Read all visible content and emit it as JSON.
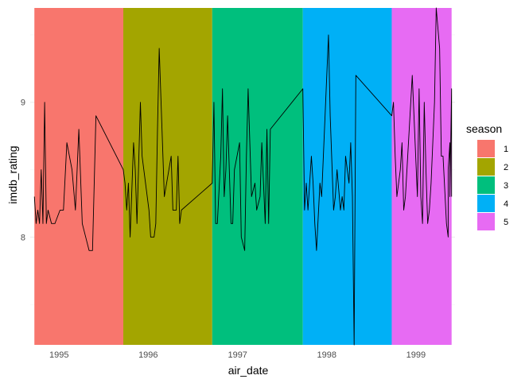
{
  "chart_data": {
    "type": "line",
    "xlabel": "air_date",
    "ylabel": "imdb_rating",
    "x_ticks": [
      "1995",
      "1996",
      "1997",
      "1998",
      "1999"
    ],
    "y_ticks": [
      8,
      9
    ],
    "xlim": [
      "1994-09-05",
      "1999-06-10"
    ],
    "ylim": [
      7.2,
      9.7
    ],
    "grid": true,
    "legend": {
      "title": "season",
      "placement": "right",
      "entries": [
        {
          "label": "1",
          "color": "#F8766D"
        },
        {
          "label": "2",
          "color": "#A3A500"
        },
        {
          "label": "3",
          "color": "#00BF7D"
        },
        {
          "label": "4",
          "color": "#00B0F6"
        },
        {
          "label": "5",
          "color": "#E76BF3"
        }
      ]
    },
    "season_bands": [
      {
        "season": "1",
        "start": "1994-09-22",
        "end": "1995-09-21",
        "color": "#F8766D"
      },
      {
        "season": "2",
        "start": "1995-09-21",
        "end": "1996-09-19",
        "color": "#A3A500"
      },
      {
        "season": "3",
        "start": "1996-09-19",
        "end": "1997-09-25",
        "color": "#00BF7D"
      },
      {
        "season": "4",
        "start": "1997-09-25",
        "end": "1998-09-24",
        "color": "#00B0F6"
      },
      {
        "season": "5",
        "start": "1998-09-24",
        "end": "1999-05-27",
        "color": "#E76BF3"
      }
    ],
    "series": [
      {
        "color": "#000000",
        "points": [
          [
            "1994-09-22",
            8.3
          ],
          [
            "1994-09-29",
            8.1
          ],
          [
            "1994-10-06",
            8.2
          ],
          [
            "1994-10-13",
            8.1
          ],
          [
            "1994-10-20",
            8.5
          ],
          [
            "1994-10-27",
            8.1
          ],
          [
            "1994-11-03",
            9.0
          ],
          [
            "1994-11-10",
            8.1
          ],
          [
            "1994-11-17",
            8.2
          ],
          [
            "1994-12-01",
            8.1
          ],
          [
            "1994-12-15",
            8.1
          ],
          [
            "1995-01-05",
            8.2
          ],
          [
            "1995-01-19",
            8.2
          ],
          [
            "1995-02-02",
            8.7
          ],
          [
            "1995-02-23",
            8.5
          ],
          [
            "1995-03-09",
            8.2
          ],
          [
            "1995-03-23",
            8.8
          ],
          [
            "1995-04-06",
            8.1
          ],
          [
            "1995-04-20",
            8.0
          ],
          [
            "1995-05-04",
            7.9
          ],
          [
            "1995-05-18",
            7.9
          ],
          [
            "1995-06-01",
            8.9
          ],
          [
            "1995-09-21",
            8.5
          ],
          [
            "1995-09-28",
            8.4
          ],
          [
            "1995-10-05",
            8.2
          ],
          [
            "1995-10-12",
            8.4
          ],
          [
            "1995-10-19",
            8.0
          ],
          [
            "1995-11-02",
            8.7
          ],
          [
            "1995-11-09",
            8.5
          ],
          [
            "1995-11-16",
            8.1
          ],
          [
            "1995-11-30",
            9.0
          ],
          [
            "1995-12-07",
            8.6
          ],
          [
            "1995-12-14",
            8.5
          ],
          [
            "1996-01-04",
            8.2
          ],
          [
            "1996-01-11",
            8.0
          ],
          [
            "1996-01-25",
            8.0
          ],
          [
            "1996-02-01",
            8.1
          ],
          [
            "1996-02-08",
            8.8
          ],
          [
            "1996-02-15",
            9.4
          ],
          [
            "1996-03-07",
            8.3
          ],
          [
            "1996-04-04",
            8.6
          ],
          [
            "1996-04-11",
            8.2
          ],
          [
            "1996-04-25",
            8.2
          ],
          [
            "1996-05-02",
            8.6
          ],
          [
            "1996-05-09",
            8.1
          ],
          [
            "1996-05-16",
            8.2
          ],
          [
            "1996-09-19",
            8.4
          ],
          [
            "1996-09-26",
            9.0
          ],
          [
            "1996-10-03",
            8.1
          ],
          [
            "1996-10-10",
            8.1
          ],
          [
            "1996-10-24",
            8.6
          ],
          [
            "1996-10-31",
            9.1
          ],
          [
            "1996-11-07",
            8.3
          ],
          [
            "1996-11-14",
            8.5
          ],
          [
            "1996-11-21",
            8.9
          ],
          [
            "1996-12-05",
            8.1
          ],
          [
            "1996-12-12",
            8.1
          ],
          [
            "1996-12-19",
            8.5
          ],
          [
            "1997-01-09",
            8.7
          ],
          [
            "1997-01-16",
            8.0
          ],
          [
            "1997-01-30",
            7.9
          ],
          [
            "1997-02-06",
            8.6
          ],
          [
            "1997-02-13",
            9.1
          ],
          [
            "1997-02-27",
            8.3
          ],
          [
            "1997-03-13",
            8.4
          ],
          [
            "1997-03-20",
            8.2
          ],
          [
            "1997-04-03",
            8.3
          ],
          [
            "1997-04-10",
            8.7
          ],
          [
            "1997-04-24",
            8.1
          ],
          [
            "1997-05-01",
            8.8
          ],
          [
            "1997-05-08",
            8.1
          ],
          [
            "1997-05-15",
            8.8
          ],
          [
            "1997-09-25",
            9.1
          ],
          [
            "1997-10-02",
            8.2
          ],
          [
            "1997-10-09",
            8.4
          ],
          [
            "1997-10-16",
            8.2
          ],
          [
            "1997-10-30",
            8.6
          ],
          [
            "1997-11-06",
            8.4
          ],
          [
            "1997-11-13",
            8.1
          ],
          [
            "1997-11-20",
            7.9
          ],
          [
            "1997-12-04",
            8.4
          ],
          [
            "1997-12-11",
            8.3
          ],
          [
            "1998-01-08",
            9.5
          ],
          [
            "1998-01-15",
            8.9
          ],
          [
            "1998-01-29",
            8.2
          ],
          [
            "1998-02-05",
            8.3
          ],
          [
            "1998-02-12",
            8.5
          ],
          [
            "1998-02-26",
            8.2
          ],
          [
            "1998-03-05",
            8.3
          ],
          [
            "1998-03-12",
            8.2
          ],
          [
            "1998-03-19",
            8.6
          ],
          [
            "1998-04-02",
            8.4
          ],
          [
            "1998-04-09",
            8.7
          ],
          [
            "1998-04-16",
            8.3
          ],
          [
            "1998-04-23",
            7.2
          ],
          [
            "1998-04-30",
            9.2
          ],
          [
            "1998-09-24",
            8.9
          ],
          [
            "1998-10-01",
            9.0
          ],
          [
            "1998-10-08",
            8.6
          ],
          [
            "1998-10-15",
            8.3
          ],
          [
            "1998-10-29",
            8.5
          ],
          [
            "1998-11-05",
            8.7
          ],
          [
            "1998-11-12",
            8.2
          ],
          [
            "1998-11-19",
            8.3
          ],
          [
            "1998-12-17",
            9.2
          ],
          [
            "1999-01-07",
            8.3
          ],
          [
            "1999-01-14",
            9.1
          ],
          [
            "1999-01-21",
            8.3
          ],
          [
            "1999-01-28",
            8.1
          ],
          [
            "1999-02-04",
            9.0
          ],
          [
            "1999-02-11",
            8.5
          ],
          [
            "1999-02-18",
            8.1
          ],
          [
            "1999-02-25",
            8.2
          ],
          [
            "1999-03-04",
            8.4
          ],
          [
            "1999-03-18",
            9.0
          ],
          [
            "1999-03-25",
            9.7
          ],
          [
            "1999-04-08",
            9.4
          ],
          [
            "1999-04-15",
            8.6
          ],
          [
            "1999-04-22",
            8.6
          ],
          [
            "1999-05-06",
            8.1
          ],
          [
            "1999-05-13",
            8.0
          ],
          [
            "1999-05-13",
            8.5
          ],
          [
            "1999-05-20",
            8.7
          ],
          [
            "1999-05-20",
            8.3
          ],
          [
            "1999-05-27",
            9.1
          ],
          [
            "1999-05-27",
            8.3
          ]
        ]
      }
    ]
  }
}
